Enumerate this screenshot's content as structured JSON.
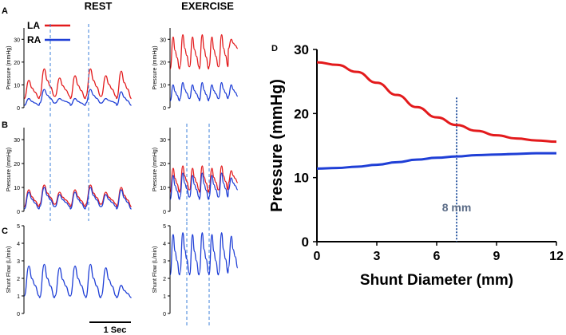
{
  "colors": {
    "la": "#e31a1c",
    "ra": "#1f3fd6",
    "dashed": "#3b7fd9",
    "dotted": "#1f4e9c",
    "annotation": "#5a6b86",
    "axis": "#000000"
  },
  "figure": {
    "rest_title": "REST",
    "exercise_title": "EXERCISE",
    "legend": [
      {
        "label": "LA",
        "color": "#e31a1c"
      },
      {
        "label": "RA",
        "color": "#1f3fd6"
      }
    ],
    "scale_bar_label": "1 Sec"
  },
  "chart_data": [
    {
      "panel": "A",
      "condition": "REST",
      "type": "line",
      "ylabel": "Pressure (mmHg)",
      "ylim": [
        0,
        35
      ],
      "yticks": [
        "0",
        "10",
        "20",
        "30"
      ],
      "series": [
        {
          "name": "LA",
          "color": "#e31a1c",
          "peaks": [
            12,
            17,
            13,
            14,
            17,
            14,
            16
          ],
          "troughs": [
            4,
            5,
            5,
            4,
            5,
            5,
            4
          ]
        },
        {
          "name": "RA",
          "color": "#1f3fd6",
          "peaks": [
            4,
            8,
            4,
            4,
            8,
            4,
            7
          ],
          "troughs": [
            1,
            2,
            2,
            1,
            2,
            2,
            1
          ]
        }
      ]
    },
    {
      "panel": "A",
      "condition": "EXERCISE",
      "type": "line",
      "ylabel": "Pressure (mmHg)",
      "ylim": [
        0,
        35
      ],
      "yticks": [
        "0",
        "10",
        "20",
        "30"
      ],
      "series": [
        {
          "name": "LA",
          "color": "#e31a1c",
          "peaks": [
            31,
            32,
            31,
            32,
            31,
            32,
            30
          ],
          "troughs": [
            17,
            18,
            18,
            17,
            18,
            18,
            26
          ]
        },
        {
          "name": "RA",
          "color": "#1f3fd6",
          "peaks": [
            10,
            11,
            10,
            11,
            10,
            11,
            10
          ],
          "troughs": [
            3,
            4,
            4,
            3,
            4,
            4,
            5
          ]
        }
      ]
    },
    {
      "panel": "B",
      "condition": "REST",
      "type": "line",
      "ylabel": "Pressure (mmHg)",
      "ylim": [
        0,
        35
      ],
      "yticks": [
        "0",
        "10",
        "20",
        "30"
      ],
      "series": [
        {
          "name": "LA",
          "color": "#e31a1c",
          "peaks": [
            9,
            11,
            8,
            9,
            11,
            8,
            10
          ],
          "troughs": [
            2,
            3,
            3,
            2,
            3,
            3,
            2
          ]
        },
        {
          "name": "RA",
          "color": "#1f3fd6",
          "peaks": [
            8,
            10,
            7,
            8,
            10,
            7,
            9
          ],
          "troughs": [
            1,
            2,
            2,
            1,
            2,
            2,
            1
          ]
        }
      ]
    },
    {
      "panel": "B",
      "condition": "EXERCISE",
      "type": "line",
      "ylabel": "Pressure (mmHg)",
      "ylim": [
        0,
        35
      ],
      "yticks": [
        "0",
        "10",
        "20",
        "30"
      ],
      "series": [
        {
          "name": "LA",
          "color": "#e31a1c",
          "peaks": [
            18,
            19,
            18,
            19,
            18,
            19,
            17
          ],
          "troughs": [
            8,
            9,
            9,
            8,
            9,
            9,
            12
          ]
        },
        {
          "name": "RA",
          "color": "#1f3fd6",
          "peaks": [
            15,
            16,
            15,
            16,
            15,
            16,
            14
          ],
          "troughs": [
            5,
            6,
            6,
            5,
            6,
            6,
            9
          ]
        }
      ]
    },
    {
      "panel": "C",
      "condition": "REST",
      "type": "line",
      "ylabel": "Shunt Flow (L/min)",
      "ylim": [
        0,
        5
      ],
      "yticks": [
        "0",
        "1",
        "2",
        "3",
        "4",
        "5"
      ],
      "series": [
        {
          "name": "RA",
          "color": "#1f3fd6",
          "peaks": [
            2.7,
            2.8,
            2.6,
            2.7,
            2.8,
            2.6,
            1.6
          ],
          "troughs": [
            1.0,
            0.9,
            1.0,
            1.0,
            0.9,
            1.0,
            0.9
          ]
        }
      ]
    },
    {
      "panel": "C",
      "condition": "EXERCISE",
      "type": "line",
      "ylabel": "Shunt Flow (L/min)",
      "ylim": [
        0,
        5
      ],
      "yticks": [
        "0",
        "1",
        "2",
        "3",
        "4",
        "5"
      ],
      "series": [
        {
          "name": "RA",
          "color": "#1f3fd6",
          "peaks": [
            4.5,
            4.6,
            4.5,
            4.6,
            4.5,
            4.6,
            4.4
          ],
          "troughs": [
            2.2,
            2.3,
            2.2,
            2.3,
            2.2,
            2.3,
            2.6
          ]
        }
      ]
    },
    {
      "panel": "D",
      "type": "line",
      "xlabel": "Shunt Diameter (mm)",
      "ylabel": "Pressure (mmHg)",
      "xlim": [
        0,
        12
      ],
      "ylim": [
        0,
        30
      ],
      "xticks": [
        0,
        3,
        6,
        9,
        12
      ],
      "yticks": [
        0,
        10,
        20,
        30
      ],
      "series": [
        {
          "name": "LA",
          "color": "#e31a1c",
          "x": [
            0,
            1,
            2,
            3,
            4,
            5,
            6,
            7,
            8,
            9,
            10,
            11,
            12
          ],
          "y": [
            28.0,
            27.6,
            26.5,
            24.8,
            22.9,
            21.0,
            19.4,
            18.2,
            17.3,
            16.6,
            16.1,
            15.8,
            15.6
          ]
        },
        {
          "name": "RA",
          "color": "#1f3fd6",
          "x": [
            0,
            1,
            2,
            3,
            4,
            5,
            6,
            7,
            8,
            9,
            10,
            11,
            12
          ],
          "y": [
            11.4,
            11.5,
            11.7,
            12.0,
            12.4,
            12.8,
            13.1,
            13.3,
            13.5,
            13.6,
            13.7,
            13.8,
            13.8
          ]
        }
      ],
      "annotation": {
        "x": 7,
        "label": "8 mm"
      }
    }
  ]
}
